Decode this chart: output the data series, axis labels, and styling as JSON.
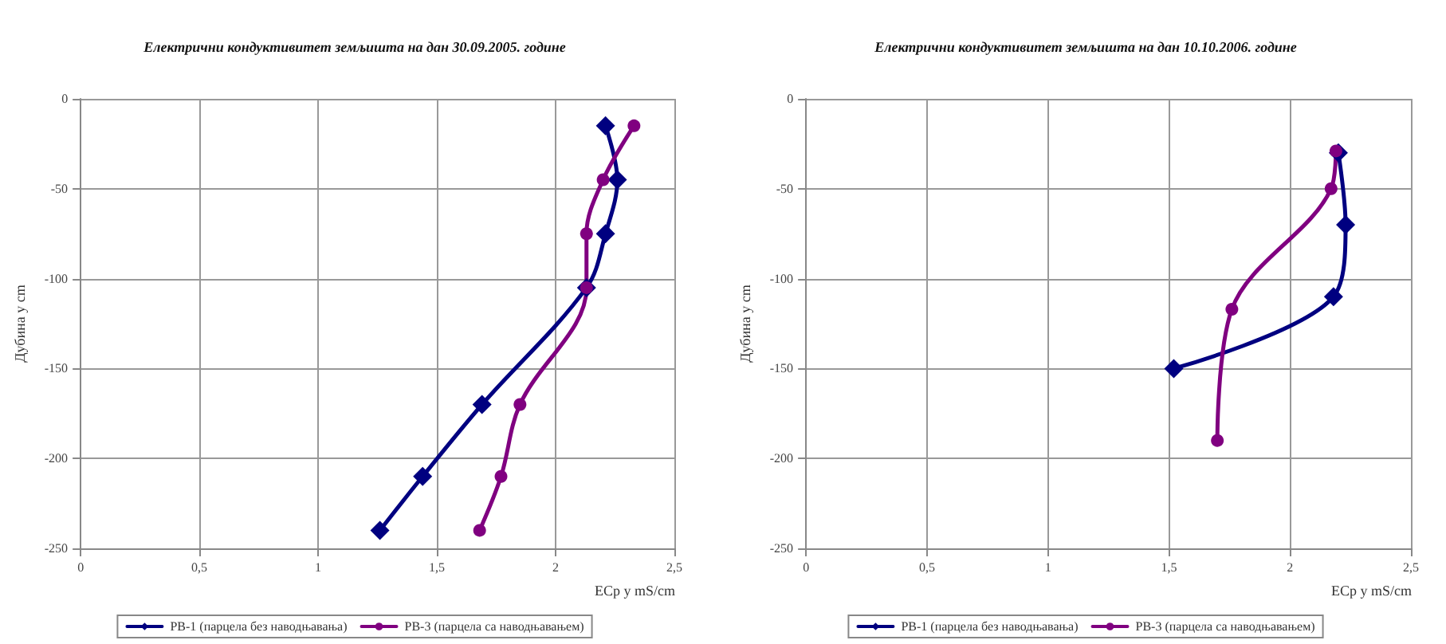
{
  "chart_data": [
    {
      "type": "line",
      "title": "Електрични кондуктивитет земљишта на дан 30.09.2005. године",
      "xlabel": "ECp у mS/cm",
      "ylabel": "Дубина у cm",
      "xlim": [
        0,
        2.5
      ],
      "xticks": [
        0,
        {
          "value": 0.5,
          "label": "0,5"
        },
        1,
        {
          "value": 1.5,
          "label": "1,5"
        },
        2,
        {
          "value": 2.5,
          "label": "2,5"
        }
      ],
      "ylim": [
        -250,
        0
      ],
      "yticks": [
        -250,
        -200,
        -150,
        -100,
        -50,
        0
      ],
      "grid": true,
      "legend": "bottom",
      "series": [
        {
          "name": "PB-1 (парцела без наводњавања)",
          "color": "#000080",
          "marker": "diamond",
          "x": [
            2.21,
            2.26,
            2.21,
            2.13,
            1.69,
            1.44,
            1.26
          ],
          "values": [
            -15,
            -45,
            -75,
            -105,
            -170,
            -210,
            -240
          ]
        },
        {
          "name": "PB-3 (парцела са наводњавањем)",
          "color": "#800080",
          "marker": "circle",
          "x": [
            2.33,
            2.2,
            2.13,
            2.13,
            1.85,
            1.77,
            1.68
          ],
          "values": [
            -15,
            -45,
            -75,
            -105,
            -170,
            -210,
            -240
          ]
        }
      ]
    },
    {
      "type": "line",
      "title": "Електрични кондуктивитет земљишта на дан 10.10.2006. године",
      "xlabel": "ECp у mS/cm",
      "ylabel": "Дубина у cm",
      "xlim": [
        0,
        2.5
      ],
      "xticks": [
        0,
        {
          "value": 0.5,
          "label": "0,5"
        },
        1,
        {
          "value": 1.5,
          "label": "1,5"
        },
        2,
        {
          "value": 2.5,
          "label": "2,5"
        }
      ],
      "ylim": [
        -250,
        0
      ],
      "yticks": [
        -250,
        -200,
        -150,
        -100,
        -50,
        0
      ],
      "grid": true,
      "legend": "bottom",
      "series": [
        {
          "name": "PB-1 (парцела без наводњавања)",
          "color": "#000080",
          "marker": "diamond",
          "x": [
            2.2,
            2.23,
            2.18,
            1.52
          ],
          "values": [
            -30,
            -70,
            -110,
            -150
          ]
        },
        {
          "name": "PB-3 (парцела са наводњавањем)",
          "color": "#800080",
          "marker": "circle",
          "x": [
            2.19,
            2.17,
            1.76,
            1.7
          ],
          "values": [
            -29,
            -50,
            -117,
            -190
          ]
        }
      ]
    }
  ]
}
